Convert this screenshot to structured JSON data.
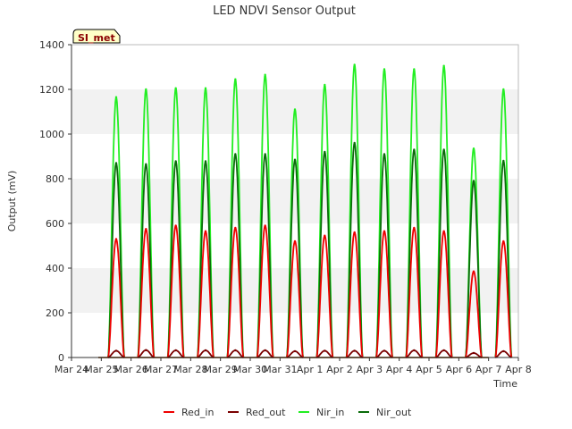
{
  "chart_data": {
    "type": "line",
    "title": "LED NDVI Sensor Output",
    "xlabel": "Time",
    "ylabel": "Output (mV)",
    "site_badge": "SI_met",
    "x_ticks": [
      "Mar 24",
      "Mar 25",
      "Mar 26",
      "Mar 27",
      "Mar 28",
      "Mar 29",
      "Mar 30",
      "Mar 31",
      "Apr 1",
      "Apr 2",
      "Apr 3",
      "Apr 4",
      "Apr 5",
      "Apr 6",
      "Apr 7",
      "Apr 8"
    ],
    "xlim": [
      "Mar 24",
      "Apr 8"
    ],
    "ylim": [
      0,
      1400
    ],
    "y_ticks": [
      0,
      200,
      400,
      600,
      800,
      1000,
      1200,
      1400
    ],
    "grid": "horizontal alternating bands",
    "legend_position": "bottom",
    "daily_peak_x_offset_days": 0.5,
    "series": [
      {
        "name": "Red_in",
        "color": "#ee0000",
        "daily_peaks": [
          {
            "date": "Mar 25",
            "value": 530
          },
          {
            "date": "Mar 26",
            "value": 575
          },
          {
            "date": "Mar 27",
            "value": 590
          },
          {
            "date": "Mar 28",
            "value": 565
          },
          {
            "date": "Mar 29",
            "value": 580
          },
          {
            "date": "Mar 30",
            "value": 590
          },
          {
            "date": "Mar 31",
            "value": 520
          },
          {
            "date": "Apr 1",
            "value": 545
          },
          {
            "date": "Apr 2",
            "value": 560
          },
          {
            "date": "Apr 3",
            "value": 565
          },
          {
            "date": "Apr 4",
            "value": 580
          },
          {
            "date": "Apr 5",
            "value": 565
          },
          {
            "date": "Apr 6",
            "value": 385
          },
          {
            "date": "Apr 7",
            "value": 520
          }
        ]
      },
      {
        "name": "Red_out",
        "color": "#7a0000",
        "daily_peaks": [
          {
            "date": "Mar 25",
            "value": 30
          },
          {
            "date": "Mar 26",
            "value": 33
          },
          {
            "date": "Mar 27",
            "value": 32
          },
          {
            "date": "Mar 28",
            "value": 32
          },
          {
            "date": "Mar 29",
            "value": 32
          },
          {
            "date": "Mar 30",
            "value": 32
          },
          {
            "date": "Mar 31",
            "value": 28
          },
          {
            "date": "Apr 1",
            "value": 30
          },
          {
            "date": "Apr 2",
            "value": 30
          },
          {
            "date": "Apr 3",
            "value": 30
          },
          {
            "date": "Apr 4",
            "value": 32
          },
          {
            "date": "Apr 5",
            "value": 32
          },
          {
            "date": "Apr 6",
            "value": 20
          },
          {
            "date": "Apr 7",
            "value": 28
          }
        ]
      },
      {
        "name": "Nir_in",
        "color": "#22ee22",
        "daily_peaks": [
          {
            "date": "Mar 25",
            "value": 1165
          },
          {
            "date": "Mar 26",
            "value": 1200
          },
          {
            "date": "Mar 27",
            "value": 1205
          },
          {
            "date": "Mar 28",
            "value": 1205
          },
          {
            "date": "Mar 29",
            "value": 1245
          },
          {
            "date": "Mar 30",
            "value": 1265
          },
          {
            "date": "Mar 31",
            "value": 1110
          },
          {
            "date": "Apr 1",
            "value": 1220
          },
          {
            "date": "Apr 2",
            "value": 1310
          },
          {
            "date": "Apr 3",
            "value": 1290
          },
          {
            "date": "Apr 4",
            "value": 1290
          },
          {
            "date": "Apr 5",
            "value": 1305
          },
          {
            "date": "Apr 6",
            "value": 935
          },
          {
            "date": "Apr 7",
            "value": 1200
          }
        ]
      },
      {
        "name": "Nir_out",
        "color": "#0a6b0a",
        "daily_peaks": [
          {
            "date": "Mar 25",
            "value": 870
          },
          {
            "date": "Mar 26",
            "value": 865
          },
          {
            "date": "Mar 27",
            "value": 878
          },
          {
            "date": "Mar 28",
            "value": 878
          },
          {
            "date": "Mar 29",
            "value": 910
          },
          {
            "date": "Mar 30",
            "value": 910
          },
          {
            "date": "Mar 31",
            "value": 885
          },
          {
            "date": "Apr 1",
            "value": 920
          },
          {
            "date": "Apr 2",
            "value": 960
          },
          {
            "date": "Apr 3",
            "value": 910
          },
          {
            "date": "Apr 4",
            "value": 930
          },
          {
            "date": "Apr 5",
            "value": 930
          },
          {
            "date": "Apr 6",
            "value": 790
          },
          {
            "date": "Apr 7",
            "value": 880
          }
        ]
      }
    ]
  }
}
